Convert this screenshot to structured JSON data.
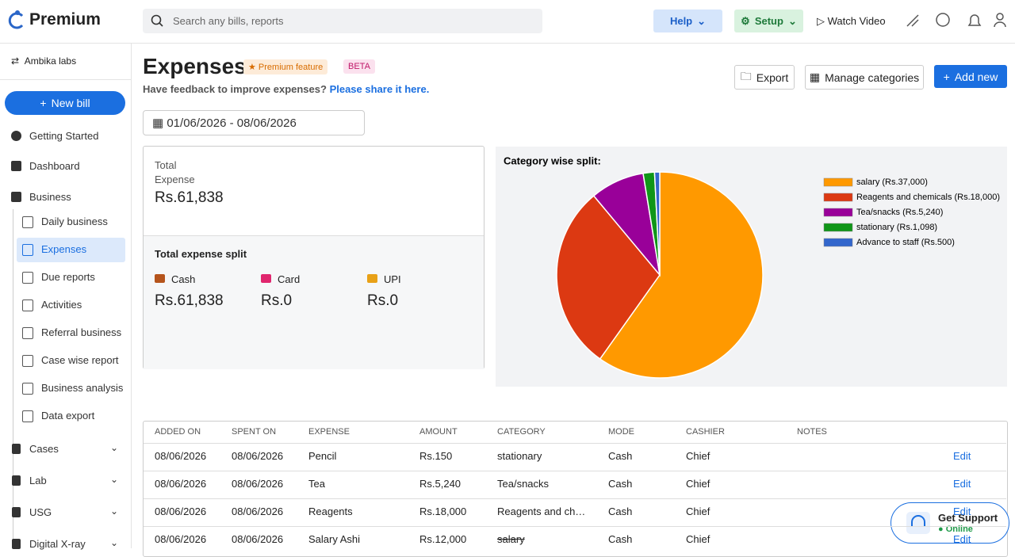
{
  "header": {
    "brand": "Premium",
    "search_placeholder": "Search any bills, reports",
    "help": "Help",
    "setup": "Setup",
    "watch_video": "Watch Video"
  },
  "sidebar": {
    "org": "Ambika labs",
    "new_bill": "New bill",
    "top_items": [
      "Getting Started",
      "Dashboard",
      "Business"
    ],
    "sub_items": [
      "Daily business",
      "Expenses",
      "Due reports",
      "Activities",
      "Referral business",
      "Case wise report",
      "Business analysis",
      "Data export"
    ],
    "bottom_items": [
      "Cases",
      "Lab",
      "USG",
      "Digital X-ray"
    ]
  },
  "page": {
    "title": "Expenses",
    "premium_badge": "Premium feature",
    "beta": "BETA",
    "feedback": "Have feedback to improve expenses?",
    "feedback_link": "Please share it here.",
    "date_range": "01/06/2026 - 08/06/2026",
    "export": "Export",
    "manage": "Manage categories",
    "add_new": "Add new"
  },
  "summary": {
    "total_label": "Total Expense",
    "total": "Rs.61,838",
    "split_title": "Total expense split",
    "modes": [
      {
        "label": "Cash",
        "amount": "Rs.61,838"
      },
      {
        "label": "Card",
        "amount": "Rs.0"
      },
      {
        "label": "UPI",
        "amount": "Rs.0"
      }
    ]
  },
  "chart_data": {
    "type": "pie",
    "title": "Category wise split:",
    "categories": [
      "salary (Rs.37,000)",
      "Reagents and chemicals (Rs.18,000)",
      "Tea/snacks (Rs.5,240)",
      "stationary (Rs.1,098)",
      "Advance to staff (Rs.500)"
    ],
    "values": [
      37000,
      18000,
      5240,
      1098,
      500
    ],
    "colors": [
      "#ff9900",
      "#dc3912",
      "#990099",
      "#109618",
      "#3366cc"
    ]
  },
  "table": {
    "headers": [
      "ADDED ON",
      "SPENT ON",
      "EXPENSE",
      "AMOUNT",
      "CATEGORY",
      "MODE",
      "CASHIER",
      "NOTES"
    ],
    "rows": [
      [
        "08/06/2026",
        "08/06/2026",
        "Pencil",
        "Rs.150",
        "stationary",
        "Cash",
        "Chief",
        ""
      ],
      [
        "08/06/2026",
        "08/06/2026",
        "Tea",
        "Rs.5,240",
        "Tea/snacks",
        "Cash",
        "Chief",
        ""
      ],
      [
        "08/06/2026",
        "08/06/2026",
        "Reagents",
        "Rs.18,000",
        "Reagents and ch…",
        "Cash",
        "Chief",
        ""
      ],
      [
        "08/06/2026",
        "08/06/2026",
        "Salary Ashi",
        "Rs.12,000",
        "salary",
        "Cash",
        "Chief",
        ""
      ]
    ],
    "edit": "Edit"
  },
  "support": {
    "title": "Get Support",
    "status": "Online"
  }
}
